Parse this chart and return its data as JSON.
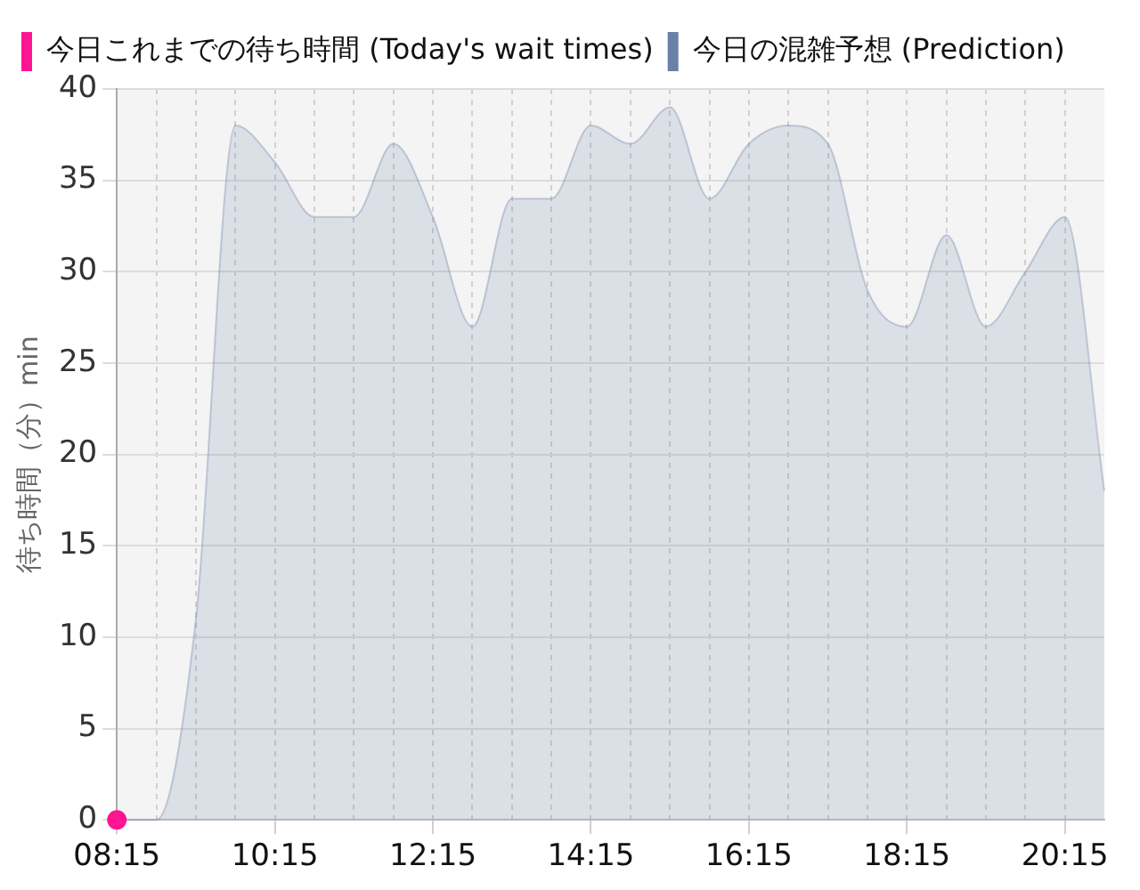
{
  "chart_data": {
    "type": "area",
    "ylabel": "待ち時間（分）min",
    "legend": "top left",
    "grid": true,
    "xlim": [
      8.25,
      20.75
    ],
    "xticks": [
      {
        "value": 8.25,
        "label": "08:15"
      },
      {
        "value": 8.75,
        "label": null
      },
      {
        "value": 9.25,
        "label": null
      },
      {
        "value": 9.75,
        "label": null
      },
      {
        "value": 10.25,
        "label": "10:15"
      },
      {
        "value": 10.75,
        "label": null
      },
      {
        "value": 11.25,
        "label": null
      },
      {
        "value": 11.75,
        "label": null
      },
      {
        "value": 12.25,
        "label": "12:15"
      },
      {
        "value": 12.75,
        "label": null
      },
      {
        "value": 13.25,
        "label": null
      },
      {
        "value": 13.75,
        "label": null
      },
      {
        "value": 14.25,
        "label": "14:15"
      },
      {
        "value": 14.75,
        "label": null
      },
      {
        "value": 15.25,
        "label": null
      },
      {
        "value": 15.75,
        "label": null
      },
      {
        "value": 16.25,
        "label": "16:15"
      },
      {
        "value": 16.75,
        "label": null
      },
      {
        "value": 17.25,
        "label": null
      },
      {
        "value": 17.75,
        "label": null
      },
      {
        "value": 18.25,
        "label": "18:15"
      },
      {
        "value": 18.75,
        "label": null
      },
      {
        "value": 19.25,
        "label": null
      },
      {
        "value": 19.75,
        "label": null
      },
      {
        "value": 20.25,
        "label": "20:15"
      }
    ],
    "ylim": [
      0,
      40
    ],
    "yticks": [
      0,
      5,
      10,
      15,
      20,
      25,
      30,
      35,
      40
    ],
    "x": [
      8.25,
      8.75,
      9.25,
      9.75,
      10.25,
      10.75,
      11.25,
      11.75,
      12.25,
      12.75,
      13.25,
      13.75,
      14.25,
      14.75,
      15.25,
      15.75,
      16.25,
      16.75,
      17.25,
      17.75,
      18.25,
      18.75,
      19.25,
      19.75,
      20.25,
      20.75
    ],
    "series": [
      {
        "name": "今日これまでの待ち時間 (Today's wait times)",
        "type": "scatter",
        "marker": "circle",
        "color": "#ff1493",
        "x": [
          8.25
        ],
        "values": [
          0
        ]
      },
      {
        "name": "今日の混雑予想 (Prediction)",
        "marker": "none",
        "color": "#6a80a8",
        "values": [
          0,
          0,
          11,
          38,
          36,
          33,
          33,
          37,
          33,
          27,
          34,
          34,
          38,
          37,
          39,
          34,
          37,
          38,
          37,
          29,
          27,
          32,
          27,
          30,
          33,
          18
        ]
      }
    ]
  }
}
